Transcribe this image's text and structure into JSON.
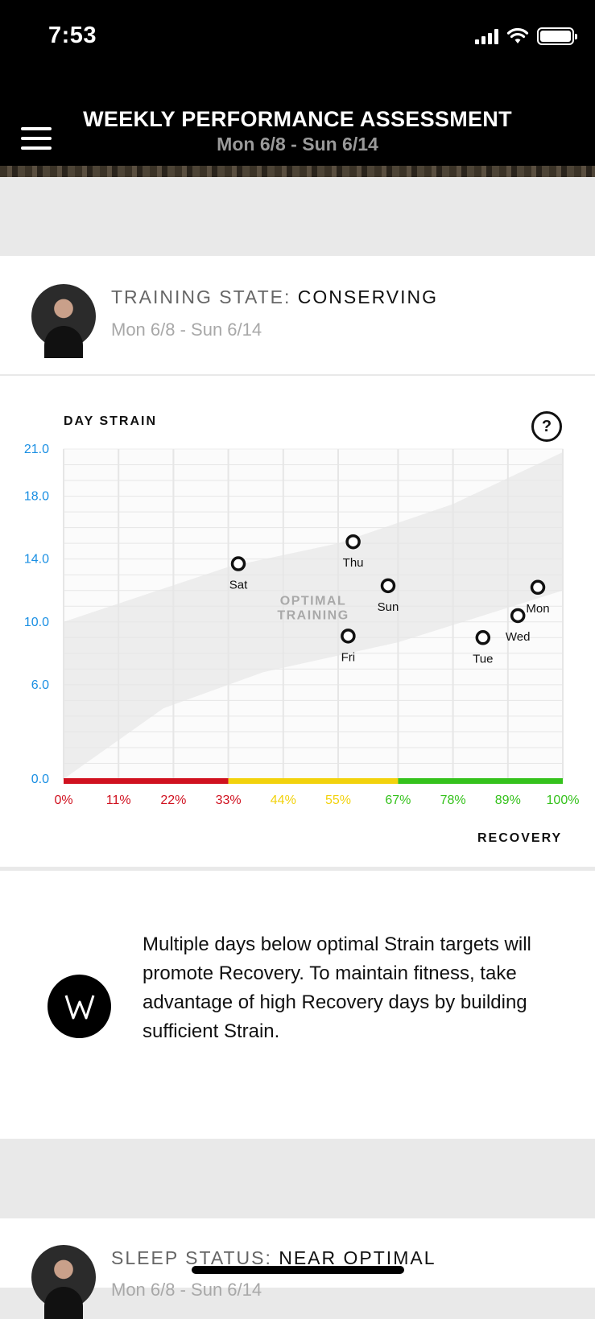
{
  "status_bar": {
    "time": "7:53"
  },
  "header": {
    "title": "WEEKLY PERFORMANCE ASSESSMENT",
    "subtitle": "Mon 6/8 - Sun 6/14"
  },
  "training_card": {
    "label": "TRAINING STATE:",
    "state": "CONSERVING",
    "date_range": "Mon 6/8 - Sun 6/14"
  },
  "chart_card": {
    "y_axis_title": "DAY STRAIN",
    "x_axis_title": "RECOVERY",
    "help_label": "?"
  },
  "chart_data": {
    "type": "scatter",
    "title": "",
    "ylabel": "DAY STRAIN",
    "xlabel": "RECOVERY",
    "ylim": [
      0,
      21
    ],
    "xlim": [
      0,
      100
    ],
    "y_ticks": [
      "0.0",
      "6.0",
      "10.0",
      "14.0",
      "18.0",
      "21.0"
    ],
    "y_tick_values": [
      0,
      6,
      10,
      14,
      18,
      21
    ],
    "x_ticks": [
      "0%",
      "11%",
      "22%",
      "33%",
      "44%",
      "55%",
      "67%",
      "78%",
      "89%",
      "100%"
    ],
    "x_tick_values": [
      0,
      11,
      22,
      33,
      44,
      55,
      67,
      78,
      89,
      100
    ],
    "grid": true,
    "zone_label": [
      "OPTIMAL",
      "TRAINING"
    ],
    "optimal_band": {
      "lower": [
        [
          0,
          0
        ],
        [
          20,
          4.5
        ],
        [
          40,
          6.8
        ],
        [
          67,
          8.7
        ],
        [
          100,
          12
        ]
      ],
      "upper": [
        [
          0,
          10
        ],
        [
          33,
          13.5
        ],
        [
          55,
          15
        ],
        [
          78,
          17.5
        ],
        [
          100,
          20.8
        ]
      ]
    },
    "recovery_zones": [
      {
        "from": 0,
        "to": 33,
        "color": "#d0111f"
      },
      {
        "from": 33,
        "to": 67,
        "color": "#f2d20d"
      },
      {
        "from": 67,
        "to": 100,
        "color": "#35c21c"
      }
    ],
    "points": [
      {
        "label": "Sat",
        "x": 35,
        "y": 13.7
      },
      {
        "label": "Thu",
        "x": 58,
        "y": 15.1
      },
      {
        "label": "Sun",
        "x": 65,
        "y": 12.3
      },
      {
        "label": "Fri",
        "x": 57,
        "y": 9.1
      },
      {
        "label": "Tue",
        "x": 84,
        "y": 9.0
      },
      {
        "label": "Wed",
        "x": 91,
        "y": 10.4
      },
      {
        "label": "Mon",
        "x": 95,
        "y": 12.2
      }
    ]
  },
  "insight_card": {
    "text": "Multiple days below optimal Strain targets will promote Recovery. To maintain fitness, take advantage of high Recovery days by building sufficient Strain."
  },
  "sleep_card": {
    "label": "SLEEP STATUS:",
    "state": "NEAR OPTIMAL",
    "date_range": "Mon 6/8 - Sun 6/14"
  },
  "colors": {
    "tick_blue": "#1a8fe3",
    "red": "#d0111f",
    "yellow": "#f2d20d",
    "green": "#35c21c"
  }
}
